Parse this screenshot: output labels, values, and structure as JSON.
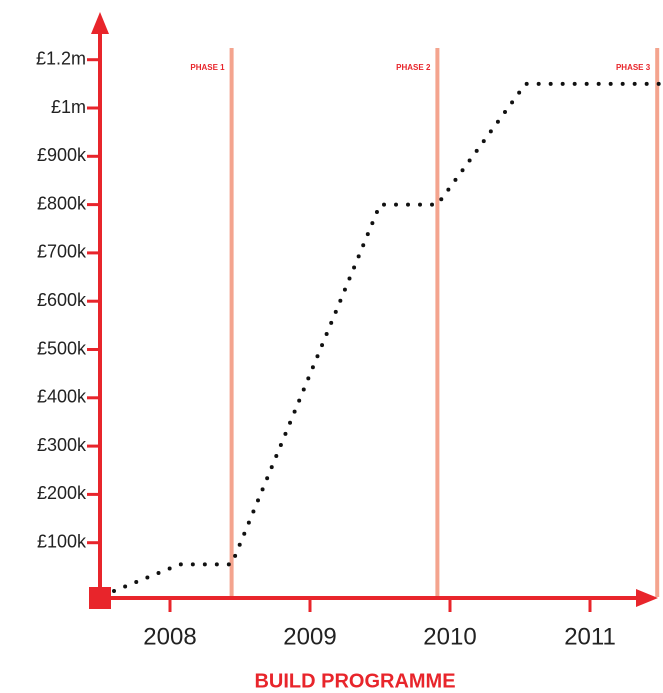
{
  "chart_data": {
    "type": "line",
    "x_label": "BUILD PROGRAMME",
    "x": [
      2007.6,
      2008.07,
      2008.44,
      2009.5,
      2009.91,
      2010.54,
      2011.5
    ],
    "series": [
      {
        "color": "#111111",
        "values": [
          0,
          55000,
          55000,
          800000,
          800000,
          1100000,
          1100000
        ]
      }
    ],
    "xlim": [
      2007.5,
      2011.5
    ],
    "xticks": [
      2008,
      2009,
      2010,
      2011
    ],
    "ylim": [
      0,
      1200000
    ],
    "yticks": [
      {
        "value": 100000,
        "label": "£100k"
      },
      {
        "value": 200000,
        "label": "£200k"
      },
      {
        "value": 300000,
        "label": "£300k"
      },
      {
        "value": 400000,
        "label": "£400k"
      },
      {
        "value": 500000,
        "label": "£500k"
      },
      {
        "value": 600000,
        "label": "£600k"
      },
      {
        "value": 700000,
        "label": "£700k"
      },
      {
        "value": 800000,
        "label": "£800k"
      },
      {
        "value": 900000,
        "label": "£900k"
      },
      {
        "value": 1000000,
        "label": "£1m"
      },
      {
        "value": 1200000,
        "label": "£1.2m"
      }
    ],
    "axis_color": "#e8252b",
    "phases": [
      {
        "label": "PHASE 1",
        "x": 2008.44
      },
      {
        "label": "PHASE 2",
        "x": 2009.91
      },
      {
        "label": "PHASE 3",
        "x": 2011.48
      }
    ],
    "phase_color": "#f4a48e"
  }
}
